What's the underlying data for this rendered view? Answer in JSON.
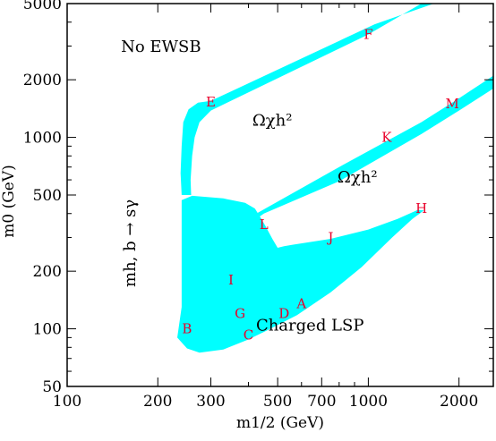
{
  "chart_data": {
    "type": "area",
    "title": "",
    "xlabel": "m1/2 (GeV)",
    "ylabel": "m0 (GeV)",
    "x_scale": "log",
    "y_scale": "log",
    "xlim": [
      100,
      2600
    ],
    "ylim": [
      50,
      5000
    ],
    "x_ticks": [
      100,
      200,
      300,
      500,
      700,
      1000,
      2000
    ],
    "y_ticks": [
      50,
      100,
      200,
      500,
      1000,
      2000,
      5000
    ],
    "x_tick_labels": [
      "100",
      "200",
      "300",
      "500",
      "700",
      "1000",
      "2000"
    ],
    "y_tick_labels": [
      "50",
      "100",
      "200",
      "500",
      "1000",
      "2000",
      "5000"
    ],
    "grid": false,
    "region_color": "#00ffff",
    "benchmark_color": "#e8002a",
    "region_labels": [
      {
        "id": "no-ewsb",
        "text": "No EWSB",
        "x": 205,
        "y": 2800
      },
      {
        "id": "omega-upper",
        "text": "Ωχh²",
        "x": 480,
        "y": 1150
      },
      {
        "id": "omega-lower",
        "text": "Ωχh²",
        "x": 920,
        "y": 580
      },
      {
        "id": "charged-lsp",
        "text": "Charged LSP",
        "x": 640,
        "y": 98
      },
      {
        "id": "mh-bsg",
        "text": "mh, b → sγ",
        "x": 168,
        "y": 280,
        "rotated": true
      }
    ],
    "benchmarks": [
      {
        "label": "A",
        "x": 600,
        "y": 135
      },
      {
        "label": "B",
        "x": 250,
        "y": 100
      },
      {
        "label": "C",
        "x": 400,
        "y": 93
      },
      {
        "label": "D",
        "x": 525,
        "y": 120
      },
      {
        "label": "E",
        "x": 300,
        "y": 1530
      },
      {
        "label": "F",
        "x": 1000,
        "y": 3450
      },
      {
        "label": "G",
        "x": 375,
        "y": 120
      },
      {
        "label": "H",
        "x": 1500,
        "y": 425
      },
      {
        "label": "I",
        "x": 350,
        "y": 180
      },
      {
        "label": "J",
        "x": 750,
        "y": 300
      },
      {
        "label": "K",
        "x": 1150,
        "y": 1000
      },
      {
        "label": "L",
        "x": 450,
        "y": 350
      },
      {
        "label": "M",
        "x": 1900,
        "y": 1500
      }
    ],
    "regions": [
      {
        "id": "allowed-main-region",
        "points": [
          [
            240,
            130
          ],
          [
            232,
            90
          ],
          [
            250,
            79
          ],
          [
            275,
            75
          ],
          [
            330,
            78
          ],
          [
            400,
            88
          ],
          [
            460,
            98
          ],
          [
            580,
            118
          ],
          [
            750,
            155
          ],
          [
            950,
            210
          ],
          [
            1200,
            300
          ],
          [
            1400,
            375
          ],
          [
            1530,
            415
          ],
          [
            1460,
            418
          ],
          [
            1250,
            375
          ],
          [
            1000,
            330
          ],
          [
            750,
            295
          ],
          [
            560,
            275
          ],
          [
            525,
            270
          ],
          [
            500,
            265
          ],
          [
            480,
            295
          ],
          [
            455,
            345
          ],
          [
            440,
            378
          ],
          [
            420,
            425
          ],
          [
            390,
            455
          ],
          [
            330,
            480
          ],
          [
            260,
            495
          ],
          [
            240,
            470
          ]
        ]
      },
      {
        "id": "upper-coannihilation-band",
        "points": [
          [
            258,
            500
          ],
          [
            257,
            600
          ],
          [
            260,
            800
          ],
          [
            265,
            1000
          ],
          [
            275,
            1200
          ],
          [
            300,
            1380
          ],
          [
            1000,
            3450
          ],
          [
            1500,
            5000
          ],
          [
            1650,
            5000
          ],
          [
            1050,
            3900
          ],
          [
            300,
            1550
          ],
          [
            272,
            1520
          ],
          [
            253,
            1400
          ],
          [
            243,
            1200
          ],
          [
            240,
            900
          ],
          [
            238,
            650
          ],
          [
            240,
            500
          ]
        ]
      },
      {
        "id": "middle-coannihilation-band",
        "points": [
          [
            395,
            375
          ],
          [
            800,
            700
          ],
          [
            1500,
            1200
          ],
          [
            2000,
            1600
          ],
          [
            2600,
            2100
          ],
          [
            2600,
            1800
          ],
          [
            2000,
            1380
          ],
          [
            1500,
            1040
          ],
          [
            800,
            590
          ],
          [
            450,
            400
          ],
          [
            410,
            360
          ]
        ]
      }
    ]
  }
}
